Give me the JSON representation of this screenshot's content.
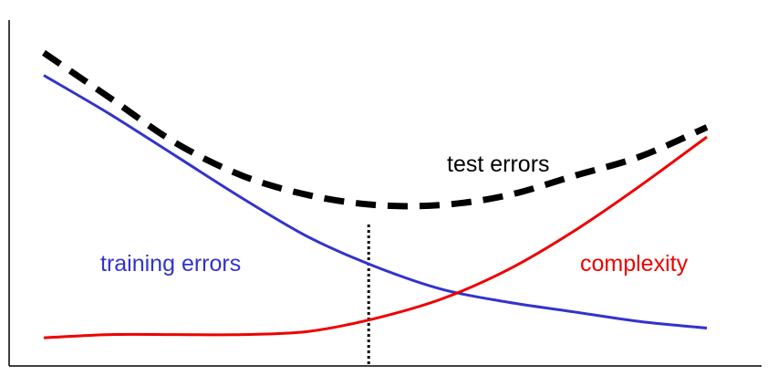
{
  "chart_data": {
    "type": "line",
    "title": "",
    "xlabel": "",
    "ylabel": "",
    "grid": false,
    "legend": "none",
    "xlim": [
      0,
      100
    ],
    "ylim": [
      0,
      100
    ],
    "series": [
      {
        "name": "training errors",
        "color": "#3333cc",
        "style": "solid",
        "x": [
          0,
          10,
          20,
          30,
          40,
          50,
          60,
          70,
          80,
          90,
          100
        ],
        "y": [
          88,
          76,
          63,
          50,
          38,
          29,
          22,
          18,
          15,
          12,
          10
        ]
      },
      {
        "name": "test errors",
        "color": "#000000",
        "style": "dashed",
        "x": [
          0,
          10,
          20,
          30,
          40,
          50,
          60,
          70,
          80,
          90,
          100
        ],
        "y": [
          95,
          81,
          67,
          57,
          51,
          48,
          48,
          51,
          57,
          63,
          72
        ]
      },
      {
        "name": "complexity",
        "color": "#ee0000",
        "style": "solid",
        "x": [
          0,
          10,
          20,
          30,
          40,
          50,
          60,
          70,
          80,
          90,
          100
        ],
        "y": [
          7,
          8,
          8,
          8,
          9,
          13,
          19,
          28,
          40,
          54,
          69
        ]
      }
    ],
    "annotations": [
      {
        "type": "vline",
        "x": 49,
        "style": "dotted",
        "color": "#000000"
      }
    ]
  }
}
